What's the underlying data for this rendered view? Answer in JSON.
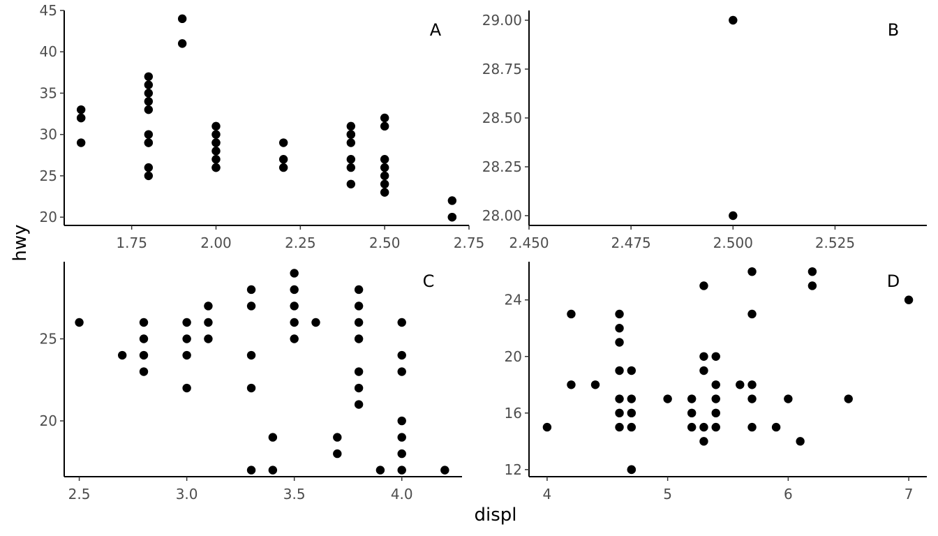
{
  "figure": {
    "xlabel": "displ",
    "ylabel": "hwy"
  },
  "chart_data": [
    {
      "type": "scatter",
      "tag": "A",
      "xlim": [
        1.55,
        2.75
      ],
      "ylim": [
        19,
        45
      ],
      "x_ticks": [
        1.75,
        2.0,
        2.25,
        2.5,
        2.75
      ],
      "x_tick_labels": [
        "1.75",
        "2.00",
        "2.25",
        "2.50",
        "2.75"
      ],
      "y_ticks": [
        20,
        25,
        30,
        35,
        40,
        45
      ],
      "y_tick_labels": [
        "20",
        "25",
        "30",
        "35",
        "40",
        "45"
      ],
      "points": [
        [
          1.6,
          33
        ],
        [
          1.6,
          32
        ],
        [
          1.6,
          32
        ],
        [
          1.6,
          29
        ],
        [
          1.8,
          37
        ],
        [
          1.8,
          36
        ],
        [
          1.8,
          35
        ],
        [
          1.8,
          34
        ],
        [
          1.8,
          33
        ],
        [
          1.8,
          30
        ],
        [
          1.8,
          29
        ],
        [
          1.8,
          29
        ],
        [
          1.8,
          26
        ],
        [
          1.8,
          25
        ],
        [
          1.9,
          44
        ],
        [
          1.9,
          41
        ],
        [
          2.0,
          31
        ],
        [
          2.0,
          30
        ],
        [
          2.0,
          29
        ],
        [
          2.0,
          29
        ],
        [
          2.0,
          28
        ],
        [
          2.0,
          27
        ],
        [
          2.0,
          26
        ],
        [
          2.0,
          26
        ],
        [
          2.2,
          29
        ],
        [
          2.2,
          27
        ],
        [
          2.2,
          26
        ],
        [
          2.4,
          31
        ],
        [
          2.4,
          30
        ],
        [
          2.4,
          30
        ],
        [
          2.4,
          29
        ],
        [
          2.4,
          27
        ],
        [
          2.4,
          26
        ],
        [
          2.4,
          24
        ],
        [
          2.5,
          32
        ],
        [
          2.5,
          31
        ],
        [
          2.5,
          27
        ],
        [
          2.5,
          26
        ],
        [
          2.5,
          25
        ],
        [
          2.5,
          24
        ],
        [
          2.5,
          23
        ],
        [
          2.7,
          22
        ],
        [
          2.7,
          20
        ],
        [
          2.7,
          20
        ]
      ]
    },
    {
      "type": "scatter",
      "tag": "B",
      "xlim": [
        2.45,
        2.5475
      ],
      "ylim": [
        27.95,
        29.05
      ],
      "x_ticks": [
        2.45,
        2.475,
        2.5,
        2.525
      ],
      "x_tick_labels": [
        "2.450",
        "2.475",
        "2.500",
        "2.525"
      ],
      "y_ticks": [
        28.0,
        28.25,
        28.5,
        28.75,
        29.0
      ],
      "y_tick_labels": [
        "28.00",
        "28.25",
        "28.50",
        "28.75",
        "29.00"
      ],
      "points": [
        [
          2.5,
          29
        ],
        [
          2.5,
          28
        ]
      ]
    },
    {
      "type": "scatter",
      "tag": "C",
      "xlim": [
        2.43,
        4.28
      ],
      "ylim": [
        16.6,
        29.7
      ],
      "x_ticks": [
        2.5,
        3.0,
        3.5,
        4.0
      ],
      "x_tick_labels": [
        "2.5",
        "3.0",
        "3.5",
        "4.0"
      ],
      "y_ticks": [
        20,
        25
      ],
      "y_tick_labels": [
        "20",
        "25"
      ],
      "points": [
        [
          2.5,
          26
        ],
        [
          2.7,
          24
        ],
        [
          2.8,
          26
        ],
        [
          2.8,
          25
        ],
        [
          2.8,
          24
        ],
        [
          2.8,
          23
        ],
        [
          3.0,
          26
        ],
        [
          3.0,
          25
        ],
        [
          3.0,
          24
        ],
        [
          3.0,
          22
        ],
        [
          3.1,
          27
        ],
        [
          3.1,
          26
        ],
        [
          3.1,
          25
        ],
        [
          3.3,
          28
        ],
        [
          3.3,
          27
        ],
        [
          3.3,
          24
        ],
        [
          3.3,
          22
        ],
        [
          3.3,
          17
        ],
        [
          3.4,
          19
        ],
        [
          3.4,
          17
        ],
        [
          3.5,
          29
        ],
        [
          3.5,
          28
        ],
        [
          3.5,
          27
        ],
        [
          3.5,
          26
        ],
        [
          3.5,
          25
        ],
        [
          3.6,
          26
        ],
        [
          3.7,
          19
        ],
        [
          3.7,
          18
        ],
        [
          3.8,
          28
        ],
        [
          3.8,
          27
        ],
        [
          3.8,
          26
        ],
        [
          3.8,
          25
        ],
        [
          3.8,
          23
        ],
        [
          3.8,
          22
        ],
        [
          3.8,
          21
        ],
        [
          3.9,
          17
        ],
        [
          4.0,
          26
        ],
        [
          4.0,
          24
        ],
        [
          4.0,
          23
        ],
        [
          4.0,
          20
        ],
        [
          4.0,
          19
        ],
        [
          4.0,
          18
        ],
        [
          4.0,
          17
        ],
        [
          4.2,
          17
        ]
      ]
    },
    {
      "type": "scatter",
      "tag": "D",
      "xlim": [
        3.85,
        7.15
      ],
      "ylim": [
        11.5,
        26.7
      ],
      "x_ticks": [
        4,
        5,
        6,
        7
      ],
      "x_tick_labels": [
        "4",
        "5",
        "6",
        "7"
      ],
      "y_ticks": [
        12,
        16,
        20,
        24
      ],
      "y_tick_labels": [
        "12",
        "16",
        "20",
        "24"
      ],
      "points": [
        [
          4.0,
          15
        ],
        [
          4.2,
          23
        ],
        [
          4.2,
          18
        ],
        [
          4.4,
          18
        ],
        [
          4.6,
          23
        ],
        [
          4.6,
          22
        ],
        [
          4.6,
          21
        ],
        [
          4.6,
          19
        ],
        [
          4.6,
          17
        ],
        [
          4.6,
          16
        ],
        [
          4.6,
          15
        ],
        [
          4.7,
          19
        ],
        [
          4.7,
          17
        ],
        [
          4.7,
          16
        ],
        [
          4.7,
          15
        ],
        [
          4.7,
          12
        ],
        [
          4.7,
          12
        ],
        [
          5.0,
          17
        ],
        [
          5.2,
          17
        ],
        [
          5.2,
          16
        ],
        [
          5.2,
          15
        ],
        [
          5.3,
          25
        ],
        [
          5.3,
          20
        ],
        [
          5.3,
          19
        ],
        [
          5.3,
          15
        ],
        [
          5.3,
          14
        ],
        [
          5.4,
          20
        ],
        [
          5.4,
          18
        ],
        [
          5.4,
          17
        ],
        [
          5.4,
          16
        ],
        [
          5.4,
          15
        ],
        [
          5.6,
          18
        ],
        [
          5.7,
          26
        ],
        [
          5.7,
          23
        ],
        [
          5.7,
          18
        ],
        [
          5.7,
          17
        ],
        [
          5.7,
          15
        ],
        [
          5.9,
          15
        ],
        [
          6.0,
          17
        ],
        [
          6.1,
          14
        ],
        [
          6.2,
          26
        ],
        [
          6.2,
          25
        ],
        [
          6.5,
          17
        ],
        [
          7.0,
          24
        ]
      ]
    }
  ]
}
